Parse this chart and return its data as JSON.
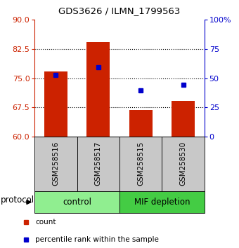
{
  "title": "GDS3626 / ILMN_1799563",
  "samples": [
    "GSM258516",
    "GSM258517",
    "GSM258515",
    "GSM258530"
  ],
  "groups": [
    {
      "label": "control",
      "indices": [
        0,
        1
      ],
      "color": "#90EE90"
    },
    {
      "label": "MIF depletion",
      "indices": [
        2,
        3
      ],
      "color": "#44CC44"
    }
  ],
  "bar_values": [
    76.8,
    84.2,
    66.8,
    69.2
  ],
  "bar_color": "#CC2200",
  "percentile_values": [
    75.8,
    77.8,
    71.8,
    73.2
  ],
  "percentile_color": "#0000CC",
  "ylim_left": [
    60,
    90
  ],
  "ylim_right": [
    0,
    100
  ],
  "yticks_left": [
    60,
    67.5,
    75,
    82.5,
    90
  ],
  "yticks_right": [
    0,
    25,
    50,
    75,
    100
  ],
  "yticklabels_right": [
    "0",
    "25",
    "50",
    "75",
    "100%"
  ],
  "bar_bottom": 60,
  "bar_width": 0.55,
  "legend_count_color": "#CC2200",
  "legend_pct_color": "#0000CC",
  "bg_gray": "#C8C8C8",
  "title_fontsize": 9.5,
  "tick_fontsize": 8,
  "label_fontsize": 7.5,
  "proto_fontsize": 8.5,
  "legend_fontsize": 7.5
}
